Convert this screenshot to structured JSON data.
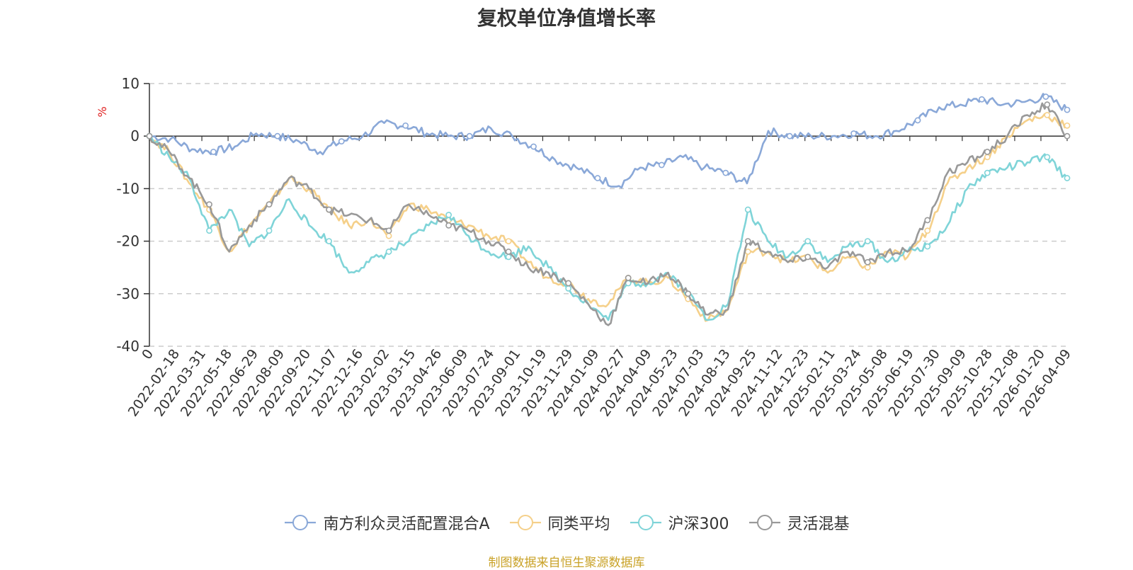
{
  "chart_data": {
    "type": "line",
    "title": "复权单位净值增长率",
    "ylabel": "%",
    "ylim": [
      -40,
      10
    ],
    "yticks": [
      10,
      0,
      -10,
      -20,
      -30,
      -40
    ],
    "grid": true,
    "legend_position": "bottom",
    "source": "制图数据来自恒生聚源数据库",
    "x_ticks": [
      "0",
      "2022-02-18",
      "2022-03-31",
      "2022-05-18",
      "2022-06-29",
      "2022-08-09",
      "2022-09-20",
      "2022-11-07",
      "2022-12-16",
      "2023-02-02",
      "2023-03-15",
      "2023-04-26",
      "2023-06-09",
      "2023-07-24",
      "2023-09-01",
      "2023-10-19",
      "2023-11-29",
      "2024-01-09",
      "2024-02-27",
      "2024-04-09",
      "2024-05-23",
      "2024-07-03",
      "2024-08-13",
      "2024-09-25",
      "2024-11-12",
      "2024-12-23",
      "2025-02-11",
      "2025-03-24",
      "2025-05-08",
      "2025-06-19",
      "2025-07-30",
      "2025-09-09",
      "2025-10-28",
      "2025-12-08",
      "2026-01-20",
      "2026-04-09"
    ],
    "series": [
      {
        "name": "南方利众灵活配置混合A",
        "color": "#8aa8d8",
        "values": [
          0,
          -0.5,
          -2.5,
          -3,
          -2,
          0.5,
          0,
          -1,
          -3,
          -1,
          0,
          2.5,
          2,
          0.5,
          0,
          0,
          1.5,
          0,
          -2,
          -4.5,
          -6,
          -8,
          -9.5,
          -6,
          -5.5,
          -4,
          -6,
          -7,
          -9,
          1,
          0,
          0,
          0,
          0.5,
          0,
          1,
          3,
          5.5,
          6,
          7,
          6,
          6.5,
          7.5,
          5
        ]
      },
      {
        "name": "同类平均",
        "color": "#f5d08a",
        "values": [
          0,
          -3,
          -9,
          -14,
          -22,
          -17,
          -13,
          -8,
          -10,
          -14,
          -17,
          -16,
          -19,
          -13,
          -14,
          -16,
          -17,
          -19,
          -20,
          -24,
          -27,
          -28,
          -31,
          -32,
          -27,
          -28,
          -27,
          -31,
          -35,
          -33,
          -22,
          -22,
          -24,
          -23,
          -26,
          -23,
          -25,
          -22,
          -23,
          -18,
          -9,
          -6,
          -4,
          0,
          3,
          4,
          2
        ]
      },
      {
        "name": "沪深300",
        "color": "#7fd4d8",
        "values": [
          0,
          -4,
          -8,
          -18,
          -14,
          -21,
          -18,
          -12,
          -17,
          -20,
          -26,
          -24,
          -22,
          -20,
          -17,
          -15,
          -19,
          -22,
          -23,
          -21,
          -25,
          -29,
          -32,
          -35,
          -28,
          -28,
          -26,
          -30,
          -35,
          -32,
          -14,
          -20,
          -23,
          -20,
          -24,
          -21,
          -20,
          -24,
          -22,
          -21,
          -17,
          -10,
          -7,
          -6,
          -5,
          -4,
          -8
        ]
      },
      {
        "name": "灵活混基",
        "color": "#999999",
        "values": [
          0,
          -3,
          -8,
          -13,
          -22,
          -17,
          -13,
          -8,
          -10,
          -14,
          -15,
          -16,
          -18,
          -13,
          -15,
          -17,
          -18,
          -20,
          -22,
          -25,
          -26,
          -28,
          -32,
          -36,
          -27,
          -28,
          -26,
          -30,
          -34,
          -33,
          -20,
          -22,
          -24,
          -23,
          -25,
          -22,
          -24,
          -22,
          -22,
          -16,
          -7,
          -5,
          -3,
          0,
          4,
          6,
          0
        ]
      }
    ]
  }
}
